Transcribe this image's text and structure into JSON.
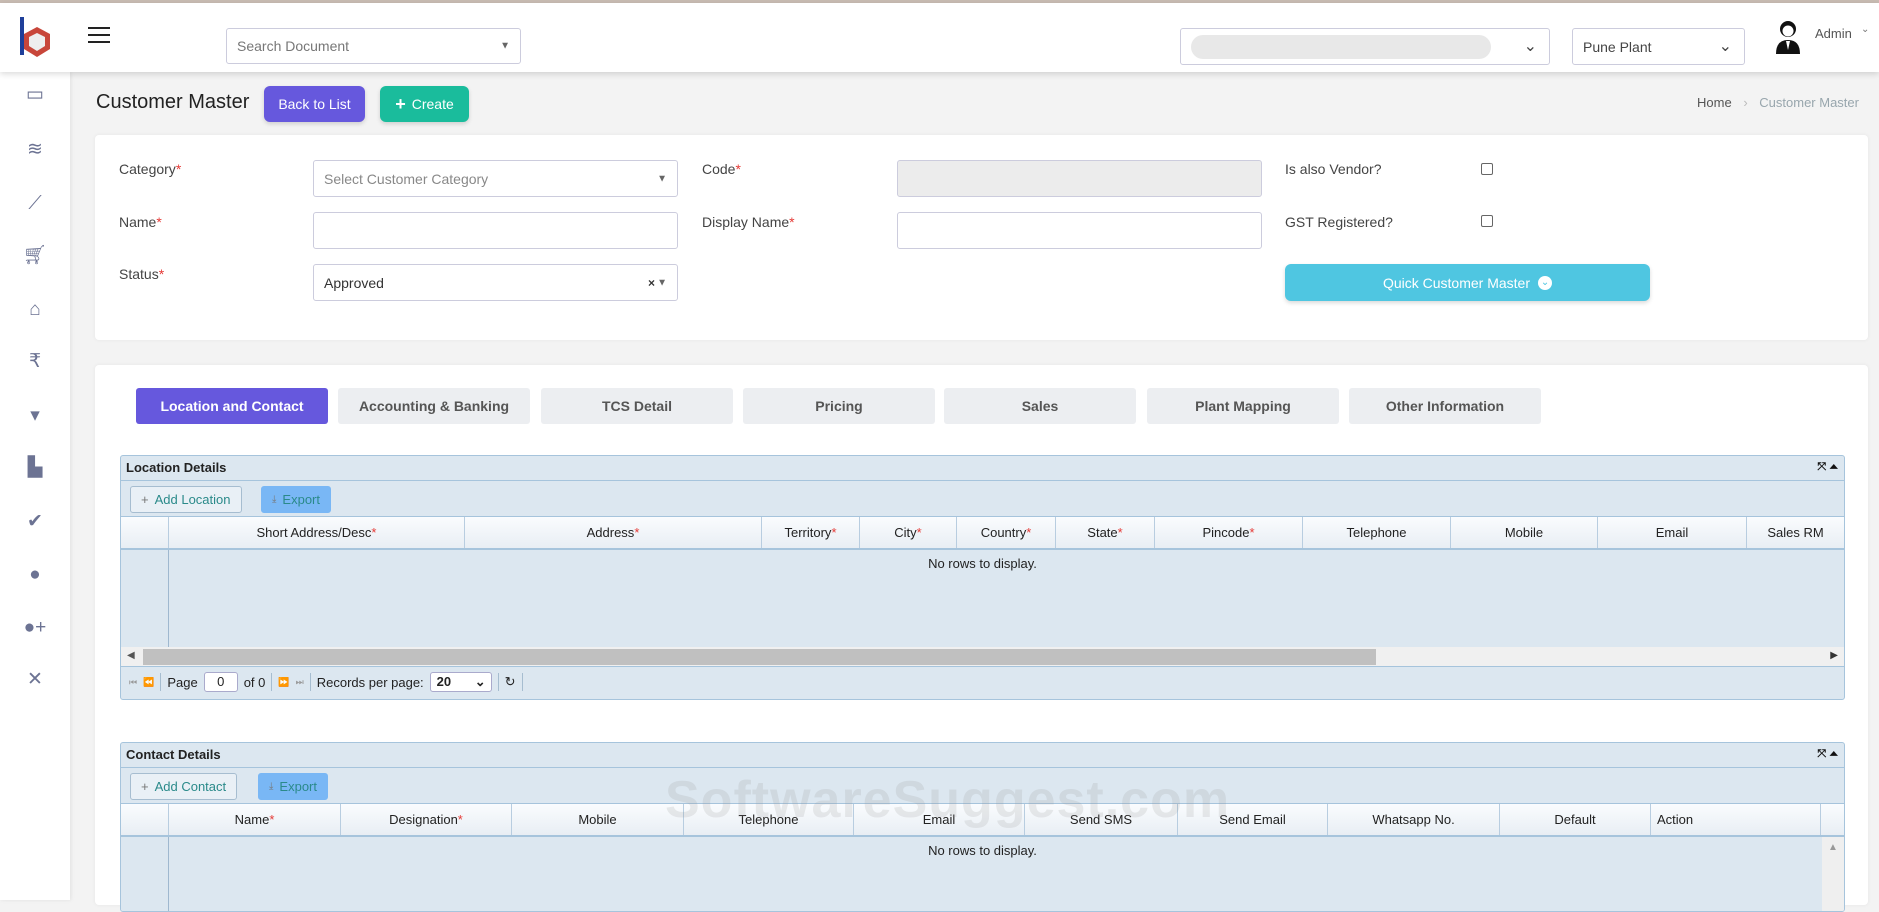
{
  "header": {
    "search_placeholder": "Search Document",
    "company_select_value": "",
    "plant_select_value": "Pune Plant",
    "user_name": "Admin"
  },
  "sidebar": {
    "items": [
      {
        "icon": "monitor-icon"
      },
      {
        "icon": "layers-icon"
      },
      {
        "icon": "chart-line-icon"
      },
      {
        "icon": "cart-icon"
      },
      {
        "icon": "bank-icon"
      },
      {
        "icon": "rupee-icon"
      },
      {
        "icon": "bucket-icon"
      },
      {
        "icon": "industry-icon"
      },
      {
        "icon": "check-icon"
      },
      {
        "icon": "user-icon"
      },
      {
        "icon": "user-plus-icon"
      },
      {
        "icon": "tools-icon"
      }
    ]
  },
  "page": {
    "title": "Customer Master",
    "back_label": "Back to List",
    "create_label": "Create",
    "breadcrumb": [
      "Home",
      "Customer Master"
    ]
  },
  "form": {
    "category_label": "Category",
    "category_placeholder": "Select Customer Category",
    "code_label": "Code",
    "code_value": "",
    "vendor_label": "Is also Vendor?",
    "vendor_checked": false,
    "name_label": "Name",
    "name_value": "",
    "display_name_label": "Display Name",
    "display_name_value": "",
    "gst_label": "GST Registered?",
    "gst_checked": false,
    "status_label": "Status",
    "status_value": "Approved",
    "quick_label": "Quick Customer Master",
    "required_mark": "*"
  },
  "tabs": [
    "Location and Contact",
    "Accounting & Banking",
    "TCS Detail",
    "Pricing",
    "Sales",
    "Plant Mapping",
    "Other Information"
  ],
  "active_tab": 0,
  "location_grid": {
    "title": "Location Details",
    "add_label": "Add Location",
    "export_label": "Export",
    "columns": [
      {
        "label": "Short Address/Desc",
        "req": true
      },
      {
        "label": "Address",
        "req": true
      },
      {
        "label": "Territory",
        "req": true
      },
      {
        "label": "City",
        "req": true
      },
      {
        "label": "Country",
        "req": true
      },
      {
        "label": "State",
        "req": true
      },
      {
        "label": "Pincode",
        "req": true
      },
      {
        "label": "Telephone",
        "req": false
      },
      {
        "label": "Mobile",
        "req": false
      },
      {
        "label": "Email",
        "req": false
      },
      {
        "label": "Sales RM",
        "req": false
      }
    ],
    "empty_text": "No rows to display.",
    "page_label": "Page",
    "page_value": "0",
    "of_label": "of 0",
    "records_label": "Records per page:",
    "records_value": "20"
  },
  "contact_grid": {
    "title": "Contact Details",
    "add_label": "Add Contact",
    "export_label": "Export",
    "columns": [
      {
        "label": "Name",
        "req": true
      },
      {
        "label": "Designation",
        "req": true
      },
      {
        "label": "Mobile",
        "req": false
      },
      {
        "label": "Telephone",
        "req": false
      },
      {
        "label": "Email",
        "req": false
      },
      {
        "label": "Send SMS",
        "req": false
      },
      {
        "label": "Send Email",
        "req": false
      },
      {
        "label": "Whatsapp No.",
        "req": false
      },
      {
        "label": "Default",
        "req": false
      },
      {
        "label": "Action",
        "req": false
      }
    ],
    "empty_text": "No rows to display."
  },
  "watermark": "SoftwareSuggest.com",
  "colors": {
    "primary": "#6658dd",
    "success": "#1abc9c",
    "info": "#4fc6e1"
  }
}
